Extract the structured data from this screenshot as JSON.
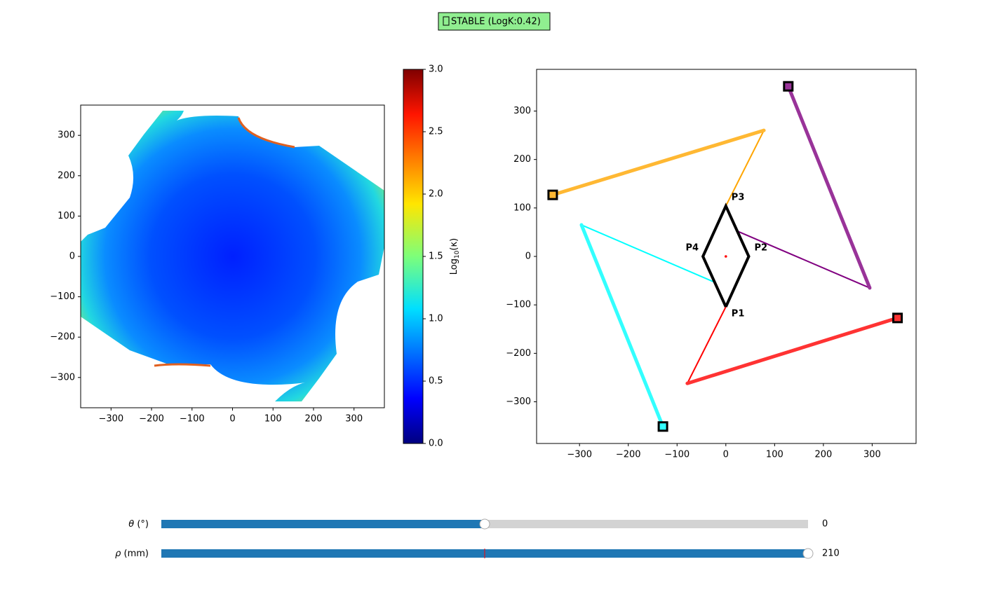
{
  "status": {
    "text": "STABLE (LogK:0.42)",
    "color": "#90ee90"
  },
  "chart_data": [
    {
      "type": "heatmap",
      "xlim": [
        -375,
        375
      ],
      "ylim": [
        -375,
        375
      ],
      "xticks": [
        {
          "value": -300,
          "label": "−300"
        },
        {
          "value": -200,
          "label": "−200"
        },
        {
          "value": -100,
          "label": "−100"
        },
        0,
        100,
        200,
        300
      ],
      "yticks": [
        {
          "value": -300,
          "label": "−300"
        },
        {
          "value": -200,
          "label": "−200"
        },
        {
          "value": -100,
          "label": "−100"
        },
        0,
        100,
        200,
        300
      ],
      "colorbar": {
        "lim": [
          0,
          3
        ],
        "ticks": [
          {
            "value": 0,
            "label": "0.0"
          },
          {
            "value": 0.5,
            "label": "0.5"
          },
          {
            "value": 1,
            "label": "1.0"
          },
          {
            "value": 1.5,
            "label": "1.5"
          },
          {
            "value": 2,
            "label": "2.0"
          },
          {
            "value": 2.5,
            "label": "2.5"
          },
          {
            "value": 3,
            "label": "3.0"
          }
        ],
        "label": {
          "base": "Log",
          "sub": "10",
          "rest": "(κ)"
        }
      }
    },
    {
      "type": "mechanism",
      "xlim": [
        -388,
        390
      ],
      "ylim": [
        -386,
        386
      ],
      "xticks": [
        {
          "value": -300,
          "label": "−300"
        },
        {
          "value": -200,
          "label": "−200"
        },
        {
          "value": -100,
          "label": "−100"
        },
        0,
        100,
        200,
        300
      ],
      "yticks": [
        {
          "value": -300,
          "label": "−300"
        },
        {
          "value": -200,
          "label": "−200"
        },
        {
          "value": -100,
          "label": "−100"
        },
        0,
        100,
        200,
        300
      ],
      "legs": [
        {
          "color": "#ffb833",
          "link_color": "#ffa500",
          "base": [
            -355,
            127
          ],
          "elbow": [
            78,
            260
          ],
          "end": [
            0,
            104
          ]
        },
        {
          "color": "#993399",
          "link_color": "#800080",
          "base": [
            128,
            351
          ],
          "elbow": [
            295,
            -65
          ],
          "end": [
            24,
            52
          ]
        },
        {
          "color": "#ff3333",
          "link_color": "#ff0000",
          "base": [
            352,
            -127
          ],
          "elbow": [
            -79,
            -262
          ],
          "end": [
            0,
            -104
          ]
        },
        {
          "color": "#33ffff",
          "link_color": "#00ffff",
          "base": [
            -129,
            -351
          ],
          "elbow": [
            -296,
            65
          ],
          "end": [
            -26,
            -52
          ]
        }
      ],
      "platform": {
        "center": [
          0,
          0
        ],
        "vertices": [
          [
            0,
            -104
          ],
          [
            47,
            0
          ],
          [
            0,
            104
          ],
          [
            -47,
            0
          ]
        ],
        "labels": [
          "P1",
          "P2",
          "P3",
          "P4"
        ],
        "label_color": "#8b0000"
      }
    }
  ],
  "sliders": [
    {
      "label": {
        "symbol": "θ",
        "unit": " (°)"
      },
      "range": [
        -180,
        180
      ],
      "value": 0,
      "valinit": 0,
      "value_label": "0"
    },
    {
      "label": {
        "symbol": "ρ",
        "unit": " (mm)"
      },
      "range": [
        0,
        210
      ],
      "value": 210,
      "valinit": 105,
      "value_label": "210"
    }
  ]
}
